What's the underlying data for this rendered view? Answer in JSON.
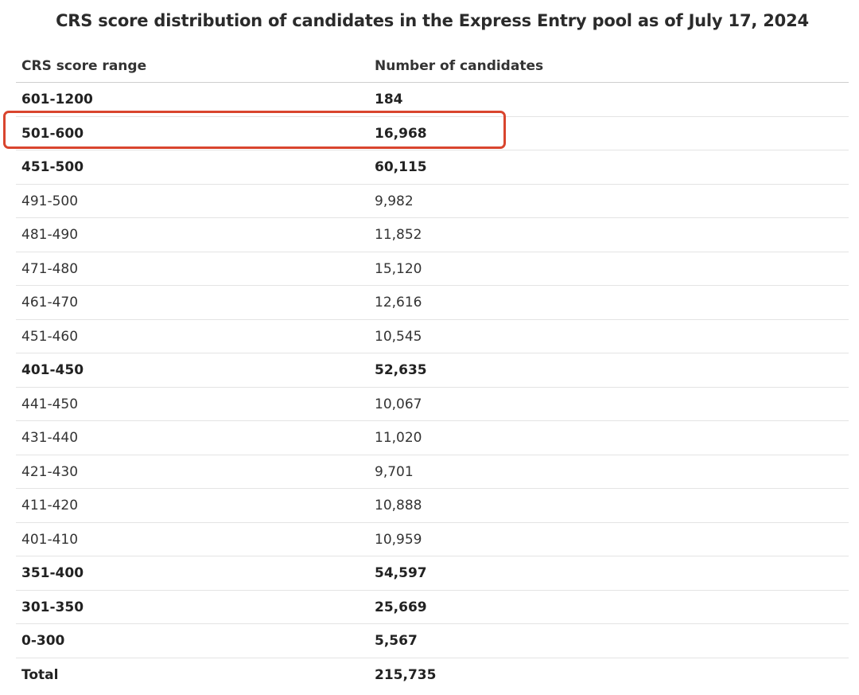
{
  "title": "CRS score distribution of candidates in the Express Entry pool as of July 17, 2024",
  "table": {
    "headers": [
      "CRS score range",
      "Number of candidates"
    ],
    "rows": [
      {
        "range": "601-1200",
        "count": "184",
        "bold": true
      },
      {
        "range": "501-600",
        "count": "16,968",
        "bold": true
      },
      {
        "range": "451-500",
        "count": "60,115",
        "bold": true
      },
      {
        "range": "491-500",
        "count": "9,982",
        "bold": false
      },
      {
        "range": "481-490",
        "count": "11,852",
        "bold": false
      },
      {
        "range": "471-480",
        "count": "15,120",
        "bold": false
      },
      {
        "range": "461-470",
        "count": "12,616",
        "bold": false
      },
      {
        "range": "451-460",
        "count": "10,545",
        "bold": false
      },
      {
        "range": "401-450",
        "count": "52,635",
        "bold": true
      },
      {
        "range": "441-450",
        "count": "10,067",
        "bold": false
      },
      {
        "range": "431-440",
        "count": "11,020",
        "bold": false
      },
      {
        "range": "421-430",
        "count": "9,701",
        "bold": false
      },
      {
        "range": "411-420",
        "count": "10,888",
        "bold": false
      },
      {
        "range": "401-410",
        "count": "10,959",
        "bold": false
      },
      {
        "range": "351-400",
        "count": "54,597",
        "bold": true
      },
      {
        "range": "301-350",
        "count": "25,669",
        "bold": true
      },
      {
        "range": "0-300",
        "count": "5,567",
        "bold": true
      },
      {
        "range": "Total",
        "count": "215,735",
        "bold": true
      }
    ]
  },
  "highlight_color": "#d9452e"
}
